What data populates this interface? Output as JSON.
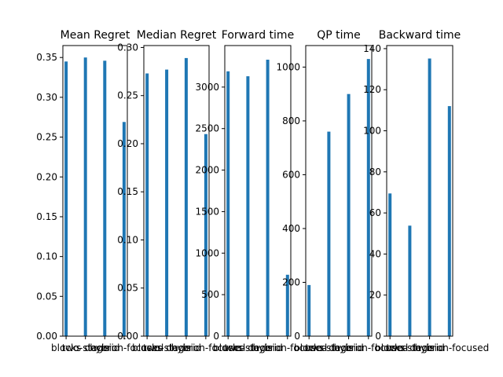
{
  "colors": {
    "bar": "#1f77b4",
    "axis": "#000000",
    "background": "#ffffff"
  },
  "chart_data": [
    {
      "type": "bar",
      "title": "Mean Regret",
      "categories": [
        "blocks",
        "two-stage",
        "hybrid",
        "decision-focused"
      ],
      "values": [
        0.345,
        0.35,
        0.346,
        0.269
      ],
      "ylim": [
        0,
        0.365
      ],
      "yticks": [
        "0.00",
        "0.05",
        "0.10",
        "0.15",
        "0.20",
        "0.25",
        "0.30",
        "0.35"
      ],
      "ytick_values": [
        0,
        0.05,
        0.1,
        0.15,
        0.2,
        0.25,
        0.3,
        0.35
      ],
      "xlabel": "",
      "ylabel": "",
      "grid": false
    },
    {
      "type": "bar",
      "title": "Median Regret",
      "categories": [
        "blocks",
        "two-stage",
        "hybrid",
        "decision-focused"
      ],
      "values": [
        0.273,
        0.277,
        0.289,
        0.21
      ],
      "ylim": [
        0,
        0.302
      ],
      "yticks": [
        "0.00",
        "0.05",
        "0.10",
        "0.15",
        "0.20",
        "0.25",
        "0.30"
      ],
      "ytick_values": [
        0,
        0.05,
        0.1,
        0.15,
        0.2,
        0.25,
        0.3
      ],
      "xlabel": "",
      "ylabel": "",
      "grid": false
    },
    {
      "type": "bar",
      "title": "Forward time",
      "categories": [
        "blocks",
        "two-stage",
        "hybrid",
        "decision-focused"
      ],
      "values": [
        3190,
        3130,
        3330,
        740
      ],
      "ylim": [
        0,
        3500
      ],
      "yticks": [
        "0",
        "500",
        "1000",
        "1500",
        "2000",
        "2500",
        "3000"
      ],
      "ytick_values": [
        0,
        500,
        1000,
        1500,
        2000,
        2500,
        3000
      ],
      "xlabel": "",
      "ylabel": "",
      "grid": false
    },
    {
      "type": "bar",
      "title": "QP time",
      "categories": [
        "blocks",
        "two-stage",
        "hybrid",
        "decision-focused"
      ],
      "values": [
        190,
        760,
        900,
        1030
      ],
      "ylim": [
        0,
        1080
      ],
      "yticks": [
        "0",
        "200",
        "400",
        "600",
        "800",
        "1000"
      ],
      "ytick_values": [
        0,
        200,
        400,
        600,
        800,
        1000
      ],
      "xlabel": "",
      "ylabel": "",
      "grid": false
    },
    {
      "type": "bar",
      "title": "Backward time",
      "categories": [
        "blocks",
        "two-stage",
        "hybrid",
        "decision-focused"
      ],
      "values": [
        69.5,
        53.8,
        135.2,
        112
      ],
      "ylim": [
        0,
        141.5
      ],
      "yticks": [
        "0",
        "20",
        "40",
        "60",
        "80",
        "100",
        "120",
        "140"
      ],
      "ytick_values": [
        0,
        20,
        40,
        60,
        80,
        100,
        120,
        140
      ],
      "xlabel": "",
      "ylabel": "",
      "grid": false
    }
  ]
}
